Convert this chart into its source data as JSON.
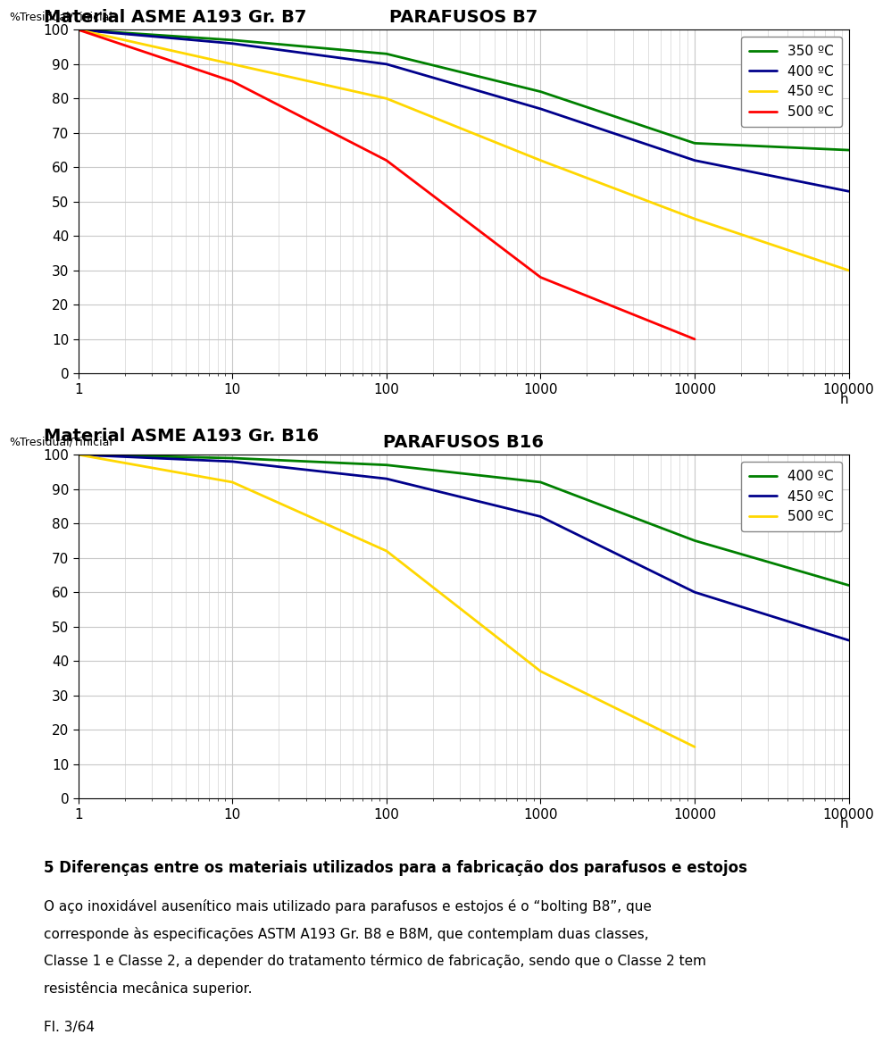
{
  "chart1_title": "PARAFUSOS B7",
  "chart1_ylabel": "%Tresidual/Tinicial",
  "chart1_xlabel": "h",
  "chart1_label_above": "Material ASME A193 Gr. B7",
  "chart1_series": [
    {
      "label": "350 ºC",
      "color": "#008000",
      "x": [
        1,
        10,
        100,
        1000,
        10000,
        100000
      ],
      "y": [
        100,
        97,
        93,
        82,
        67,
        65
      ]
    },
    {
      "label": "400 ºC",
      "color": "#00008B",
      "x": [
        1,
        10,
        100,
        1000,
        10000,
        100000
      ],
      "y": [
        100,
        96,
        90,
        77,
        62,
        53
      ]
    },
    {
      "label": "450 ºC",
      "color": "#FFD700",
      "x": [
        1,
        10,
        100,
        1000,
        10000,
        100000
      ],
      "y": [
        100,
        90,
        80,
        62,
        45,
        30
      ]
    },
    {
      "label": "500 ºC",
      "color": "#FF0000",
      "x": [
        1,
        10,
        100,
        1000,
        10000
      ],
      "y": [
        100,
        85,
        62,
        28,
        10
      ]
    }
  ],
  "chart2_title": "PARAFUSOS B16",
  "chart2_ylabel": "%Tresidual/Tinicial",
  "chart2_xlabel": "h",
  "chart2_label_above": "Material ASME A193 Gr. B16",
  "chart2_series": [
    {
      "label": "400 ºC",
      "color": "#008000",
      "x": [
        1,
        10,
        100,
        1000,
        10000,
        100000
      ],
      "y": [
        100,
        99,
        97,
        92,
        75,
        62
      ]
    },
    {
      "label": "450 ºC",
      "color": "#00008B",
      "x": [
        1,
        10,
        100,
        1000,
        10000,
        100000
      ],
      "y": [
        100,
        98,
        93,
        82,
        60,
        46
      ]
    },
    {
      "label": "500 ºC",
      "color": "#FFD700",
      "x": [
        1,
        10,
        100,
        1000,
        10000
      ],
      "y": [
        100,
        92,
        72,
        37,
        15
      ]
    }
  ],
  "footnote_heading": "5 Diferenças entre os materiais utilizados para a fabricação dos parafusos e estojos",
  "footnote_body1": "O aço inoxidável ausenítico mais utilizado para parafusos e estojos é o “bolting B8”, que",
  "footnote_body2": "corresponde às especificações ASTM A193 Gr. B8 e B8M, que contemplam duas classes,",
  "footnote_body3": "Classe 1 e Classe 2, a depender do tratamento térmico de fabricação, sendo que o Classe 2 tem",
  "footnote_body4": "resistência mecânica superior.",
  "page_label": "Fl. 3/64",
  "ylim": [
    0,
    100
  ],
  "xlim_min": 1,
  "xlim_max": 100000,
  "yticks": [
    0,
    10,
    20,
    30,
    40,
    50,
    60,
    70,
    80,
    90,
    100
  ],
  "xticks": [
    1,
    10,
    100,
    1000,
    10000,
    100000
  ],
  "xtick_labels": [
    "1",
    "10",
    "100",
    "1000",
    "10000",
    "100000"
  ],
  "bg_color": "#ffffff",
  "chart_bg": "#ffffff",
  "grid_color": "#c8c8c8",
  "label_fontsize": 14,
  "title_fontsize": 14,
  "tick_fontsize": 11,
  "legend_fontsize": 11,
  "footnote_heading_fontsize": 12,
  "footnote_body_fontsize": 11,
  "page_fontsize": 11
}
